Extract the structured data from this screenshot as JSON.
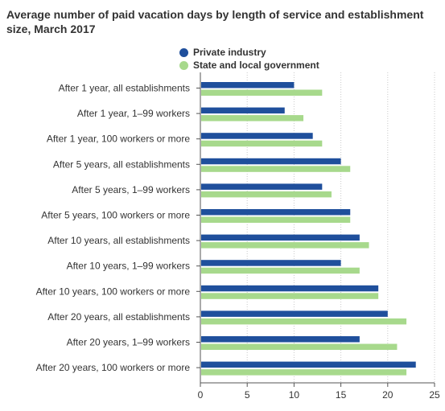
{
  "chart_data": {
    "type": "bar",
    "orientation": "horizontal",
    "title": "Average number of paid vacation days by length of service and establishment size, March 2017",
    "categories": [
      "After 1 year, all establishments",
      "After 1 year, 1–99 workers",
      "After 1 year, 100 workers or more",
      "After 5 years, all establishments",
      "After 5 years, 1–99 workers",
      "After 5 years, 100 workers or more",
      "After 10 years, all establishments",
      "After 10 years, 1–99 workers",
      "After 10 years, 100 workers or more",
      "After 20 years, all establishments",
      "After 20 years, 1–99 workers",
      "After 20 years, 100 workers or more"
    ],
    "series": [
      {
        "name": "Private industry",
        "color": "#1f4f9c",
        "values": [
          10,
          9,
          12,
          15,
          13,
          16,
          17,
          15,
          19,
          20,
          17,
          23
        ]
      },
      {
        "name": "State and local government",
        "color": "#a7d98c",
        "values": [
          13,
          11,
          13,
          16,
          14,
          16,
          18,
          17,
          19,
          22,
          21,
          22
        ]
      }
    ],
    "xlim": [
      0,
      25
    ],
    "x_ticks": [
      "0",
      "5",
      "10",
      "15",
      "20",
      "25"
    ],
    "xlabel": "",
    "ylabel": "",
    "grid": "vertical dotted",
    "legend_position": "top"
  }
}
